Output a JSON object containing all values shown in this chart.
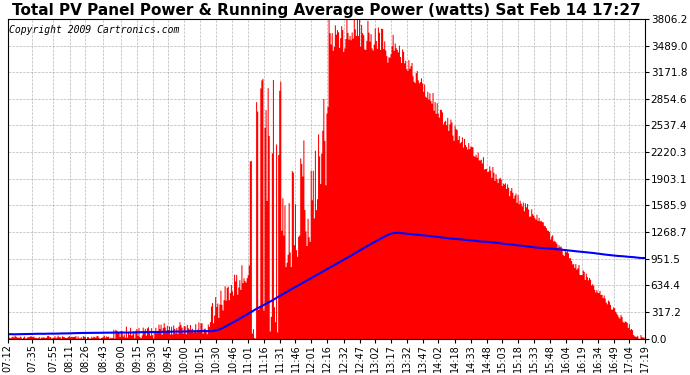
{
  "title": "Total PV Panel Power & Running Average Power (watts) Sat Feb 14 17:27",
  "copyright": "Copyright 2009 Cartronics.com",
  "background_color": "#ffffff",
  "plot_bg_color": "#ffffff",
  "grid_color": "#999999",
  "bar_color": "#ff0000",
  "line_color": "#0000ff",
  "ymin": 0.0,
  "ymax": 3806.2,
  "yticks": [
    0.0,
    317.2,
    634.4,
    951.5,
    1268.7,
    1585.9,
    1903.1,
    2220.3,
    2537.4,
    2854.6,
    3171.8,
    3489.0,
    3806.2
  ],
  "xtick_labels": [
    "07:12",
    "07:35",
    "07:55",
    "08:11",
    "08:26",
    "08:43",
    "09:00",
    "09:15",
    "09:30",
    "09:45",
    "10:00",
    "10:15",
    "10:30",
    "10:46",
    "11:01",
    "11:16",
    "11:31",
    "11:46",
    "12:01",
    "12:16",
    "12:32",
    "12:47",
    "13:02",
    "13:17",
    "13:32",
    "13:47",
    "14:02",
    "14:18",
    "14:33",
    "14:48",
    "15:03",
    "15:18",
    "15:33",
    "15:48",
    "16:04",
    "16:19",
    "16:34",
    "16:49",
    "17:04",
    "17:19"
  ],
  "title_fontsize": 11,
  "copyright_fontsize": 7,
  "tick_fontsize": 7,
  "ytick_fontsize": 7.5
}
